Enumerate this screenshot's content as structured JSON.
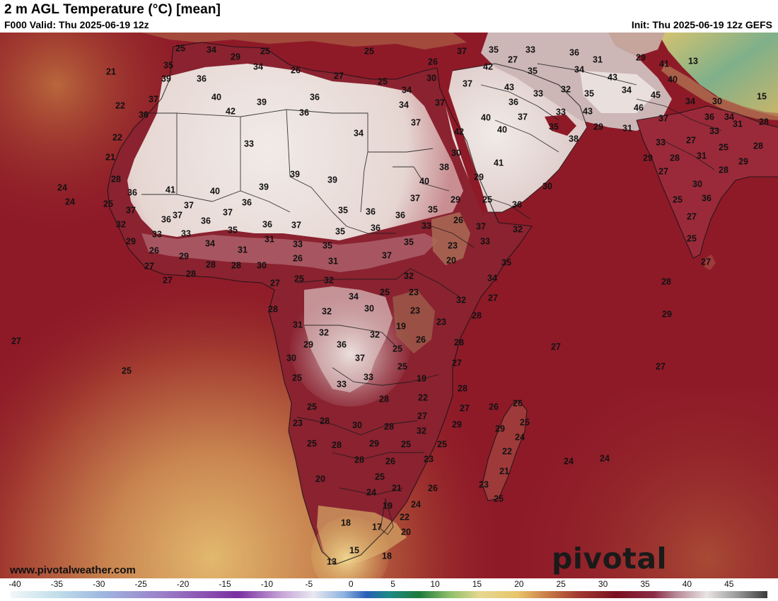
{
  "header": {
    "title": "2 m AGL Temperature (°C) [mean]",
    "valid": "F000 Valid: Thu 2025-06-19 12z",
    "init": "Init: Thu 2025-06-19 12z GEFS"
  },
  "footer": {
    "website": "www.pivotalweather.com",
    "brand": "pivotal weather"
  },
  "colorbar": {
    "ticks": [
      "-40",
      "-35",
      "-30",
      "-25",
      "-20",
      "-15",
      "-10",
      "-5",
      "0",
      "5",
      "10",
      "15",
      "20",
      "25",
      "30",
      "35",
      "40",
      "45"
    ],
    "colors": {
      "cold_end": "#e6f4f8",
      "purple": "#7a2fa0",
      "blue": "#2a5fb8",
      "green": "#1f7a3a",
      "yellow": "#e8c56a",
      "maroon": "#7a1020",
      "hot_end": "#3a3a3a"
    }
  },
  "map_colors": {
    "ocean_warm": "#8e1a28",
    "ocean_cool": "#b86a3a",
    "ocean_cold": "#d7a867",
    "land_hot": "#ece2dd",
    "land_mid": "#a8505c",
    "land_mild": "#7c1426",
    "land_cool": "#e0b35a"
  },
  "temperature_labels": [
    {
      "t": "34",
      "lon": 299,
      "lat": 71
    },
    {
      "t": "29",
      "lon": 333,
      "lat": 81
    },
    {
      "t": "25",
      "lon": 375,
      "lat": 73
    },
    {
      "t": "35",
      "lon": 238,
      "lat": 93
    },
    {
      "t": "25",
      "lon": 255,
      "lat": 69
    },
    {
      "t": "34",
      "lon": 365,
      "lat": 95
    },
    {
      "t": "26",
      "lon": 418,
      "lat": 100
    },
    {
      "t": "27",
      "lon": 479,
      "lat": 108
    },
    {
      "t": "25",
      "lon": 522,
      "lat": 73
    },
    {
      "t": "25",
      "lon": 541,
      "lat": 116
    },
    {
      "t": "26",
      "lon": 612,
      "lat": 88
    },
    {
      "t": "37",
      "lon": 653,
      "lat": 73
    },
    {
      "t": "35",
      "lon": 698,
      "lat": 71
    },
    {
      "t": "33",
      "lon": 750,
      "lat": 71
    },
    {
      "t": "36",
      "lon": 812,
      "lat": 75
    },
    {
      "t": "31",
      "lon": 845,
      "lat": 85
    },
    {
      "t": "29",
      "lon": 906,
      "lat": 82
    },
    {
      "t": "41",
      "lon": 939,
      "lat": 91
    },
    {
      "t": "13",
      "lon": 980,
      "lat": 87
    },
    {
      "t": "21",
      "lon": 157,
      "lat": 102
    },
    {
      "t": "39",
      "lon": 235,
      "lat": 112
    },
    {
      "t": "36",
      "lon": 285,
      "lat": 112
    },
    {
      "t": "40",
      "lon": 306,
      "lat": 138
    },
    {
      "t": "42",
      "lon": 326,
      "lat": 158
    },
    {
      "t": "39",
      "lon": 370,
      "lat": 145
    },
    {
      "t": "36",
      "lon": 445,
      "lat": 138
    },
    {
      "t": "36",
      "lon": 430,
      "lat": 160
    },
    {
      "t": "34",
      "lon": 575,
      "lat": 128
    },
    {
      "t": "30",
      "lon": 610,
      "lat": 111
    },
    {
      "t": "37",
      "lon": 661,
      "lat": 119
    },
    {
      "t": "42",
      "lon": 690,
      "lat": 95
    },
    {
      "t": "27",
      "lon": 725,
      "lat": 85
    },
    {
      "t": "35",
      "lon": 753,
      "lat": 101
    },
    {
      "t": "34",
      "lon": 819,
      "lat": 99
    },
    {
      "t": "43",
      "lon": 866,
      "lat": 110
    },
    {
      "t": "40",
      "lon": 951,
      "lat": 113
    },
    {
      "t": "15",
      "lon": 1077,
      "lat": 137
    },
    {
      "t": "22",
      "lon": 170,
      "lat": 150
    },
    {
      "t": "37",
      "lon": 217,
      "lat": 141
    },
    {
      "t": "36",
      "lon": 203,
      "lat": 163
    },
    {
      "t": "34",
      "lon": 571,
      "lat": 149
    },
    {
      "t": "37",
      "lon": 622,
      "lat": 146
    },
    {
      "t": "43",
      "lon": 720,
      "lat": 124
    },
    {
      "t": "33",
      "lon": 761,
      "lat": 133
    },
    {
      "t": "32",
      "lon": 800,
      "lat": 127
    },
    {
      "t": "35",
      "lon": 833,
      "lat": 133
    },
    {
      "t": "34",
      "lon": 886,
      "lat": 128
    },
    {
      "t": "45",
      "lon": 927,
      "lat": 135
    },
    {
      "t": "34",
      "lon": 976,
      "lat": 144
    },
    {
      "t": "30",
      "lon": 1014,
      "lat": 144
    },
    {
      "t": "36",
      "lon": 726,
      "lat": 145
    },
    {
      "t": "43",
      "lon": 831,
      "lat": 158
    },
    {
      "t": "46",
      "lon": 903,
      "lat": 153
    },
    {
      "t": "37",
      "lon": 739,
      "lat": 166
    },
    {
      "t": "33",
      "lon": 793,
      "lat": 159
    },
    {
      "t": "37",
      "lon": 938,
      "lat": 168
    },
    {
      "t": "36",
      "lon": 1003,
      "lat": 166
    },
    {
      "t": "34",
      "lon": 1031,
      "lat": 166
    },
    {
      "t": "31",
      "lon": 1043,
      "lat": 176
    },
    {
      "t": "28",
      "lon": 1080,
      "lat": 173
    },
    {
      "t": "22",
      "lon": 166,
      "lat": 195
    },
    {
      "t": "33",
      "lon": 352,
      "lat": 204
    },
    {
      "t": "34",
      "lon": 507,
      "lat": 189
    },
    {
      "t": "37",
      "lon": 588,
      "lat": 174
    },
    {
      "t": "42",
      "lon": 649,
      "lat": 187
    },
    {
      "t": "40",
      "lon": 687,
      "lat": 167
    },
    {
      "t": "40",
      "lon": 710,
      "lat": 184
    },
    {
      "t": "35",
      "lon": 783,
      "lat": 180
    },
    {
      "t": "29",
      "lon": 846,
      "lat": 180
    },
    {
      "t": "31",
      "lon": 887,
      "lat": 182
    },
    {
      "t": "33",
      "lon": 934,
      "lat": 202
    },
    {
      "t": "27",
      "lon": 977,
      "lat": 199
    },
    {
      "t": "33",
      "lon": 1010,
      "lat": 186
    },
    {
      "t": "25",
      "lon": 1023,
      "lat": 209
    },
    {
      "t": "28",
      "lon": 1072,
      "lat": 207
    },
    {
      "t": "38",
      "lon": 811,
      "lat": 197
    },
    {
      "t": "21",
      "lon": 156,
      "lat": 223
    },
    {
      "t": "30",
      "lon": 645,
      "lat": 217
    },
    {
      "t": "29",
      "lon": 916,
      "lat": 224
    },
    {
      "t": "28",
      "lon": 954,
      "lat": 224
    },
    {
      "t": "31",
      "lon": 992,
      "lat": 221
    },
    {
      "t": "29",
      "lon": 1051,
      "lat": 229
    },
    {
      "t": "41",
      "lon": 705,
      "lat": 231
    },
    {
      "t": "38",
      "lon": 628,
      "lat": 237
    },
    {
      "t": "27",
      "lon": 938,
      "lat": 243
    },
    {
      "t": "28",
      "lon": 1023,
      "lat": 241
    },
    {
      "t": "28",
      "lon": 164,
      "lat": 254
    },
    {
      "t": "39",
      "lon": 417,
      "lat": 247
    },
    {
      "t": "39",
      "lon": 470,
      "lat": 255
    },
    {
      "t": "40",
      "lon": 600,
      "lat": 257
    },
    {
      "t": "29",
      "lon": 677,
      "lat": 251
    },
    {
      "t": "30",
      "lon": 774,
      "lat": 264
    },
    {
      "t": "30",
      "lon": 986,
      "lat": 261
    },
    {
      "t": "24",
      "lon": 88,
      "lat": 266
    },
    {
      "t": "41",
      "lon": 241,
      "lat": 269
    },
    {
      "t": "40",
      "lon": 304,
      "lat": 271
    },
    {
      "t": "39",
      "lon": 373,
      "lat": 265
    },
    {
      "t": "36",
      "lon": 187,
      "lat": 273
    },
    {
      "t": "24",
      "lon": 99,
      "lat": 286
    },
    {
      "t": "25",
      "lon": 153,
      "lat": 289
    },
    {
      "t": "37",
      "lon": 267,
      "lat": 291
    },
    {
      "t": "36",
      "lon": 349,
      "lat": 287
    },
    {
      "t": "37",
      "lon": 587,
      "lat": 281
    },
    {
      "t": "29",
      "lon": 644,
      "lat": 283
    },
    {
      "t": "25",
      "lon": 689,
      "lat": 283
    },
    {
      "t": "36",
      "lon": 731,
      "lat": 290
    },
    {
      "t": "25",
      "lon": 958,
      "lat": 283
    },
    {
      "t": "36",
      "lon": 999,
      "lat": 281
    },
    {
      "t": "37",
      "lon": 185,
      "lat": 298
    },
    {
      "t": "37",
      "lon": 251,
      "lat": 305
    },
    {
      "t": "37",
      "lon": 322,
      "lat": 301
    },
    {
      "t": "35",
      "lon": 485,
      "lat": 298
    },
    {
      "t": "36",
      "lon": 524,
      "lat": 300
    },
    {
      "t": "36",
      "lon": 566,
      "lat": 305
    },
    {
      "t": "35",
      "lon": 612,
      "lat": 297
    },
    {
      "t": "32",
      "lon": 171,
      "lat": 318
    },
    {
      "t": "36",
      "lon": 235,
      "lat": 311
    },
    {
      "t": "36",
      "lon": 291,
      "lat": 313
    },
    {
      "t": "36",
      "lon": 378,
      "lat": 318
    },
    {
      "t": "37",
      "lon": 419,
      "lat": 319
    },
    {
      "t": "26",
      "lon": 648,
      "lat": 312
    },
    {
      "t": "27",
      "lon": 978,
      "lat": 307
    },
    {
      "t": "33",
      "lon": 222,
      "lat": 332
    },
    {
      "t": "33",
      "lon": 263,
      "lat": 331
    },
    {
      "t": "35",
      "lon": 329,
      "lat": 326
    },
    {
      "t": "31",
      "lon": 381,
      "lat": 339
    },
    {
      "t": "35",
      "lon": 481,
      "lat": 328
    },
    {
      "t": "36",
      "lon": 531,
      "lat": 323
    },
    {
      "t": "33",
      "lon": 603,
      "lat": 320
    },
    {
      "t": "37",
      "lon": 680,
      "lat": 321
    },
    {
      "t": "32",
      "lon": 732,
      "lat": 325
    },
    {
      "t": "29",
      "lon": 185,
      "lat": 342
    },
    {
      "t": "34",
      "lon": 297,
      "lat": 345
    },
    {
      "t": "33",
      "lon": 421,
      "lat": 346
    },
    {
      "t": "35",
      "lon": 463,
      "lat": 348
    },
    {
      "t": "35",
      "lon": 578,
      "lat": 343
    },
    {
      "t": "23",
      "lon": 640,
      "lat": 348
    },
    {
      "t": "33",
      "lon": 686,
      "lat": 342
    },
    {
      "t": "25",
      "lon": 978,
      "lat": 338
    },
    {
      "t": "26",
      "lon": 218,
      "lat": 355
    },
    {
      "t": "29",
      "lon": 260,
      "lat": 363
    },
    {
      "t": "31",
      "lon": 343,
      "lat": 354
    },
    {
      "t": "37",
      "lon": 547,
      "lat": 362
    },
    {
      "t": "20",
      "lon": 638,
      "lat": 369
    },
    {
      "t": "26",
      "lon": 421,
      "lat": 366
    },
    {
      "t": "31",
      "lon": 471,
      "lat": 370
    },
    {
      "t": "27",
      "lon": 211,
      "lat": 377
    },
    {
      "t": "28",
      "lon": 298,
      "lat": 375
    },
    {
      "t": "28",
      "lon": 334,
      "lat": 376
    },
    {
      "t": "30",
      "lon": 370,
      "lat": 376
    },
    {
      "t": "35",
      "lon": 716,
      "lat": 372
    },
    {
      "t": "27",
      "lon": 998,
      "lat": 371
    },
    {
      "t": "28",
      "lon": 270,
      "lat": 388
    },
    {
      "t": "32",
      "lon": 578,
      "lat": 391
    },
    {
      "t": "27",
      "lon": 237,
      "lat": 397
    },
    {
      "t": "25",
      "lon": 423,
      "lat": 395
    },
    {
      "t": "32",
      "lon": 465,
      "lat": 397
    },
    {
      "t": "34",
      "lon": 696,
      "lat": 394
    },
    {
      "t": "28",
      "lon": 942,
      "lat": 399
    },
    {
      "t": "27",
      "lon": 389,
      "lat": 401
    },
    {
      "t": "25",
      "lon": 544,
      "lat": 414
    },
    {
      "t": "23",
      "lon": 585,
      "lat": 414
    },
    {
      "t": "34",
      "lon": 500,
      "lat": 420
    },
    {
      "t": "32",
      "lon": 652,
      "lat": 425
    },
    {
      "t": "27",
      "lon": 697,
      "lat": 422
    },
    {
      "t": "28",
      "lon": 386,
      "lat": 438
    },
    {
      "t": "32",
      "lon": 462,
      "lat": 441
    },
    {
      "t": "30",
      "lon": 522,
      "lat": 437
    },
    {
      "t": "23",
      "lon": 587,
      "lat": 440
    },
    {
      "t": "28",
      "lon": 674,
      "lat": 447
    },
    {
      "t": "29",
      "lon": 943,
      "lat": 445
    },
    {
      "t": "31",
      "lon": 421,
      "lat": 460
    },
    {
      "t": "19",
      "lon": 567,
      "lat": 462
    },
    {
      "t": "23",
      "lon": 624,
      "lat": 456
    },
    {
      "t": "32",
      "lon": 458,
      "lat": 471
    },
    {
      "t": "32",
      "lon": 530,
      "lat": 474
    },
    {
      "t": "26",
      "lon": 595,
      "lat": 481
    },
    {
      "t": "27",
      "lon": 23,
      "lat": 483
    },
    {
      "t": "29",
      "lon": 436,
      "lat": 488
    },
    {
      "t": "36",
      "lon": 483,
      "lat": 488
    },
    {
      "t": "25",
      "lon": 562,
      "lat": 494
    },
    {
      "t": "28",
      "lon": 649,
      "lat": 485
    },
    {
      "t": "27",
      "lon": 786,
      "lat": 491
    },
    {
      "t": "30",
      "lon": 412,
      "lat": 507
    },
    {
      "t": "37",
      "lon": 509,
      "lat": 507
    },
    {
      "t": "27",
      "lon": 646,
      "lat": 514
    },
    {
      "t": "27",
      "lon": 934,
      "lat": 519
    },
    {
      "t": "25",
      "lon": 179,
      "lat": 525
    },
    {
      "t": "25",
      "lon": 569,
      "lat": 519
    },
    {
      "t": "25",
      "lon": 420,
      "lat": 535
    },
    {
      "t": "33",
      "lon": 521,
      "lat": 534
    },
    {
      "t": "19",
      "lon": 596,
      "lat": 536
    },
    {
      "t": "33",
      "lon": 483,
      "lat": 544
    },
    {
      "t": "28",
      "lon": 654,
      "lat": 550
    },
    {
      "t": "28",
      "lon": 543,
      "lat": 565
    },
    {
      "t": "22",
      "lon": 598,
      "lat": 563
    },
    {
      "t": "26",
      "lon": 732,
      "lat": 571
    },
    {
      "t": "25",
      "lon": 441,
      "lat": 576
    },
    {
      "t": "26",
      "lon": 698,
      "lat": 576
    },
    {
      "t": "27",
      "lon": 657,
      "lat": 578
    },
    {
      "t": "27",
      "lon": 597,
      "lat": 589
    },
    {
      "t": "25",
      "lon": 742,
      "lat": 598
    },
    {
      "t": "23",
      "lon": 421,
      "lat": 599
    },
    {
      "t": "28",
      "lon": 459,
      "lat": 596
    },
    {
      "t": "30",
      "lon": 505,
      "lat": 602
    },
    {
      "t": "28",
      "lon": 550,
      "lat": 604
    },
    {
      "t": "29",
      "lon": 646,
      "lat": 601
    },
    {
      "t": "29",
      "lon": 707,
      "lat": 607
    },
    {
      "t": "32",
      "lon": 596,
      "lat": 610
    },
    {
      "t": "24",
      "lon": 735,
      "lat": 619
    },
    {
      "t": "25",
      "lon": 441,
      "lat": 628
    },
    {
      "t": "28",
      "lon": 476,
      "lat": 630
    },
    {
      "t": "29",
      "lon": 529,
      "lat": 628
    },
    {
      "t": "25",
      "lon": 574,
      "lat": 629
    },
    {
      "t": "25",
      "lon": 625,
      "lat": 629
    },
    {
      "t": "22",
      "lon": 717,
      "lat": 639
    },
    {
      "t": "28",
      "lon": 508,
      "lat": 651
    },
    {
      "t": "26",
      "lon": 552,
      "lat": 653
    },
    {
      "t": "23",
      "lon": 606,
      "lat": 650
    },
    {
      "t": "24",
      "lon": 804,
      "lat": 653
    },
    {
      "t": "24",
      "lon": 855,
      "lat": 649
    },
    {
      "t": "25",
      "lon": 537,
      "lat": 675
    },
    {
      "t": "21",
      "lon": 713,
      "lat": 667
    },
    {
      "t": "20",
      "lon": 453,
      "lat": 678
    },
    {
      "t": "21",
      "lon": 561,
      "lat": 691
    },
    {
      "t": "26",
      "lon": 612,
      "lat": 691
    },
    {
      "t": "24",
      "lon": 525,
      "lat": 697
    },
    {
      "t": "23",
      "lon": 684,
      "lat": 686
    },
    {
      "t": "25",
      "lon": 705,
      "lat": 706
    },
    {
      "t": "19",
      "lon": 548,
      "lat": 716
    },
    {
      "t": "24",
      "lon": 588,
      "lat": 714
    },
    {
      "t": "22",
      "lon": 572,
      "lat": 732
    },
    {
      "t": "18",
      "lon": 489,
      "lat": 740
    },
    {
      "t": "17",
      "lon": 533,
      "lat": 746
    },
    {
      "t": "20",
      "lon": 574,
      "lat": 753
    },
    {
      "t": "15",
      "lon": 501,
      "lat": 779
    },
    {
      "t": "18",
      "lon": 547,
      "lat": 787
    },
    {
      "t": "13",
      "lon": 469,
      "lat": 795
    }
  ]
}
